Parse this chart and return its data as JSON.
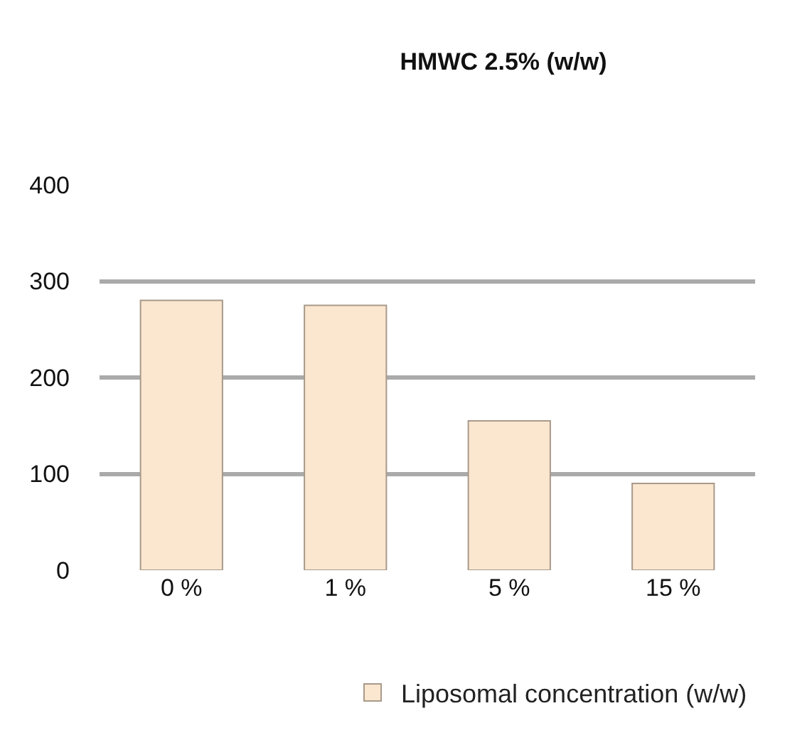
{
  "chart_data": {
    "type": "bar",
    "title": "HMWC 2.5% (w/w)",
    "categories": [
      "0 %",
      "1 %",
      "5 %",
      "15 %"
    ],
    "series": [
      {
        "name": "Liposomal concentration (w/w)",
        "color": "#fbe6cf",
        "values": [
          280,
          275,
          155,
          90
        ]
      }
    ],
    "ylim": [
      0,
      400
    ],
    "yticks": [
      0,
      100,
      200,
      300,
      400
    ],
    "grid": "y",
    "legend": "bottom right"
  }
}
